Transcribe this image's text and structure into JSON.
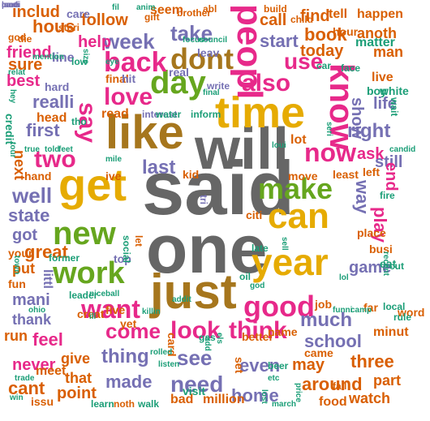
{
  "palette": {
    "gray": "#666666",
    "gold": "#E6AB02",
    "brown": "#A6761D",
    "pink": "#E7298A",
    "purple": "#7570B3",
    "green": "#66A61E",
    "orange": "#D95F02",
    "teal": "#1B9E77"
  },
  "words": [
    {
      "text": "said",
      "color": "gray"
    },
    {
      "text": "will",
      "color": "gray"
    },
    {
      "text": "one",
      "color": "gray"
    },
    {
      "text": "like",
      "color": "brown"
    },
    {
      "text": "time",
      "color": "gold"
    },
    {
      "text": "get",
      "color": "gold"
    },
    {
      "text": "just",
      "color": "brown"
    },
    {
      "text": "year",
      "color": "gold"
    },
    {
      "text": "can",
      "color": "gold"
    },
    {
      "text": "make",
      "color": "green"
    },
    {
      "text": "new",
      "color": "green"
    },
    {
      "text": "work",
      "color": "green"
    },
    {
      "text": "day",
      "color": "green"
    },
    {
      "text": "know",
      "color": "pink"
    },
    {
      "text": "peopl",
      "color": "pink"
    },
    {
      "text": "want",
      "color": "pink"
    },
    {
      "text": "good",
      "color": "pink"
    },
    {
      "text": "dont",
      "color": "brown"
    },
    {
      "text": "back",
      "color": "pink"
    },
    {
      "text": "now",
      "color": "pink"
    },
    {
      "text": "love",
      "color": "pink"
    },
    {
      "text": "say",
      "color": "pink"
    },
    {
      "text": "also",
      "color": "pink"
    },
    {
      "text": "two",
      "color": "pink"
    },
    {
      "text": "look",
      "color": "pink"
    },
    {
      "text": "think",
      "color": "pink"
    },
    {
      "text": "come",
      "color": "pink"
    },
    {
      "text": "use",
      "color": "pink"
    },
    {
      "text": "way",
      "color": "purple"
    },
    {
      "text": "first",
      "color": "purple"
    },
    {
      "text": "take",
      "color": "purple"
    },
    {
      "text": "last",
      "color": "purple"
    },
    {
      "text": "well",
      "color": "purple"
    },
    {
      "text": "right",
      "color": "purple"
    },
    {
      "text": "week",
      "color": "purple"
    },
    {
      "text": "see",
      "color": "purple"
    },
    {
      "text": "need",
      "color": "purple"
    },
    {
      "text": "thing",
      "color": "purple"
    },
    {
      "text": "much",
      "color": "purple"
    },
    {
      "text": "made",
      "color": "purple"
    },
    {
      "text": "even",
      "color": "purple"
    },
    {
      "text": "realli",
      "color": "purple"
    },
    {
      "text": "state",
      "color": "purple"
    },
    {
      "text": "game",
      "color": "purple"
    },
    {
      "text": "school",
      "color": "purple"
    },
    {
      "text": "may",
      "color": "orange"
    },
    {
      "text": "great",
      "color": "orange"
    },
    {
      "text": "got",
      "color": "purple"
    },
    {
      "text": "home",
      "color": "purple"
    },
    {
      "text": "start",
      "color": "purple"
    },
    {
      "text": "show",
      "color": "purple"
    },
    {
      "text": "still",
      "color": "purple"
    },
    {
      "text": "life",
      "color": "purple"
    },
    {
      "text": "play",
      "color": "pink"
    },
    {
      "text": "end",
      "color": "pink"
    },
    {
      "text": "ask",
      "color": "pink"
    },
    {
      "text": "call",
      "color": "orange"
    },
    {
      "text": "book",
      "color": "orange"
    },
    {
      "text": "today",
      "color": "orange"
    },
    {
      "text": "find",
      "color": "orange"
    },
    {
      "text": "follow",
      "color": "orange"
    },
    {
      "text": "help",
      "color": "pink"
    },
    {
      "text": "hous",
      "color": "orange"
    },
    {
      "text": "friend",
      "color": "pink"
    },
    {
      "text": "best",
      "color": "pink"
    },
    {
      "text": "sure",
      "color": "orange"
    },
    {
      "text": "includ",
      "color": "orange"
    },
    {
      "text": "seem",
      "color": "orange"
    },
    {
      "text": "tell",
      "color": "orange"
    },
    {
      "text": "happen",
      "color": "orange"
    },
    {
      "text": "anoth",
      "color": "orange"
    },
    {
      "text": "man",
      "color": "orange"
    },
    {
      "text": "live",
      "color": "orange"
    },
    {
      "text": "lot",
      "color": "orange"
    },
    {
      "text": "move",
      "color": "orange"
    },
    {
      "text": "least",
      "color": "orange"
    },
    {
      "text": "left",
      "color": "orange"
    },
    {
      "text": "mani",
      "color": "purple"
    },
    {
      "text": "thank",
      "color": "purple"
    },
    {
      "text": "feel",
      "color": "pink"
    },
    {
      "text": "never",
      "color": "pink"
    },
    {
      "text": "give",
      "color": "orange"
    },
    {
      "text": "that",
      "color": "orange"
    },
    {
      "text": "point",
      "color": "orange"
    },
    {
      "text": "cant",
      "color": "orange"
    },
    {
      "text": "around",
      "color": "orange"
    },
    {
      "text": "three",
      "color": "orange"
    },
    {
      "text": "part",
      "color": "orange"
    },
    {
      "text": "watch",
      "color": "orange"
    },
    {
      "text": "food",
      "color": "orange"
    },
    {
      "text": "million",
      "color": "orange"
    },
    {
      "text": "bad",
      "color": "orange"
    },
    {
      "text": "run",
      "color": "orange"
    },
    {
      "text": "kid",
      "color": "orange"
    },
    {
      "text": "ive",
      "color": "orange"
    },
    {
      "text": "tri",
      "color": "purple"
    },
    {
      "text": "citi",
      "color": "orange"
    },
    {
      "text": "final",
      "color": "orange"
    },
    {
      "text": "hand",
      "color": "orange"
    },
    {
      "text": "place",
      "color": "orange"
    },
    {
      "text": "put",
      "color": "orange"
    },
    {
      "text": "littl",
      "color": "purple"
    },
    {
      "text": "next",
      "color": "orange"
    },
    {
      "text": "head",
      "color": "orange"
    },
    {
      "text": "read",
      "color": "orange"
    },
    {
      "text": "job",
      "color": "orange"
    },
    {
      "text": "fun",
      "color": "orange"
    },
    {
      "text": "meet",
      "color": "orange"
    },
    {
      "text": "came",
      "color": "orange"
    },
    {
      "text": "name",
      "color": "orange"
    },
    {
      "text": "word",
      "color": "orange"
    },
    {
      "text": "busi",
      "color": "orange"
    },
    {
      "text": "your",
      "color": "orange"
    },
    {
      "text": "line",
      "color": "purple"
    },
    {
      "text": "hard",
      "color": "purple"
    },
    {
      "text": "care",
      "color": "purple"
    },
    {
      "text": "write",
      "color": "purple"
    },
    {
      "text": "top",
      "color": "purple"
    },
    {
      "text": "leav",
      "color": "purple"
    },
    {
      "text": "hit",
      "color": "purple"
    },
    {
      "text": "real",
      "color": "purple"
    },
    {
      "text": "interest",
      "color": "purple"
    },
    {
      "text": "water",
      "color": "teal"
    },
    {
      "text": "inform",
      "color": "teal"
    },
    {
      "text": "social",
      "color": "teal"
    },
    {
      "text": "let",
      "color": "orange"
    },
    {
      "text": "yet",
      "color": "orange"
    },
    {
      "text": "five",
      "color": "orange"
    },
    {
      "text": "creat",
      "color": "orange"
    },
    {
      "text": "card",
      "color": "orange"
    },
    {
      "text": "better",
      "color": "orange"
    },
    {
      "text": "set",
      "color": "orange"
    },
    {
      "text": "minut",
      "color": "orange"
    },
    {
      "text": "issu",
      "color": "orange"
    },
    {
      "text": "noth",
      "color": "orange"
    },
    {
      "text": "walk",
      "color": "teal"
    },
    {
      "text": "learn",
      "color": "teal"
    },
    {
      "text": "visit",
      "color": "teal"
    },
    {
      "text": "fall",
      "color": "orange"
    },
    {
      "text": "far",
      "color": "orange"
    },
    {
      "text": "local",
      "color": "teal"
    },
    {
      "text": "rule",
      "color": "teal"
    },
    {
      "text": "cut",
      "color": "teal"
    },
    {
      "text": "eat",
      "color": "teal"
    },
    {
      "text": "fire",
      "color": "teal"
    },
    {
      "text": "boy",
      "color": "teal"
    },
    {
      "text": "white",
      "color": "teal"
    },
    {
      "text": "wait",
      "color": "teal"
    },
    {
      "text": "face",
      "color": "teal"
    },
    {
      "text": "car",
      "color": "teal"
    },
    {
      "text": "matter",
      "color": "teal"
    },
    {
      "text": "hour",
      "color": "orange"
    },
    {
      "text": "build",
      "color": "orange"
    },
    {
      "text": "child",
      "color": "orange"
    },
    {
      "text": "abl",
      "color": "orange"
    },
    {
      "text": "stori",
      "color": "orange"
    },
    {
      "text": "god",
      "color": "orange"
    },
    {
      "text": "die",
      "color": "orange"
    },
    {
      "text": "brother",
      "color": "orange"
    },
    {
      "text": "gift",
      "color": "orange"
    },
    {
      "text": "focus",
      "color": "teal"
    },
    {
      "text": "council",
      "color": "teal"
    },
    {
      "text": "anim",
      "color": "teal"
    },
    {
      "text": "fil",
      "color": "teal"
    },
    {
      "text": "size",
      "color": "teal"
    },
    {
      "text": "mention",
      "color": "teal"
    },
    {
      "text": "low",
      "color": "teal"
    },
    {
      "text": "relat",
      "color": "teal"
    },
    {
      "text": "hey",
      "color": "teal"
    },
    {
      "text": "credit",
      "color": "teal"
    },
    {
      "text": "true",
      "color": "teal"
    },
    {
      "text": "told",
      "color": "teal"
    },
    {
      "text": "feet",
      "color": "teal"
    },
    {
      "text": "tour",
      "color": "teal"
    },
    {
      "text": "loui",
      "color": "teal"
    },
    {
      "text": "candid",
      "color": "teal"
    },
    {
      "text": "gas",
      "color": "teal"
    },
    {
      "text": "leader",
      "color": "teal"
    },
    {
      "text": "nice",
      "color": "teal"
    },
    {
      "text": "ball",
      "color": "teal"
    },
    {
      "text": "former",
      "color": "teal"
    },
    {
      "text": "town",
      "color": "teal"
    },
    {
      "text": "ohio",
      "color": "teal"
    },
    {
      "text": "funni",
      "color": "teal"
    },
    {
      "text": "camp",
      "color": "teal"
    },
    {
      "text": "trade",
      "color": "teal"
    },
    {
      "text": "etc",
      "color": "teal"
    },
    {
      "text": "price",
      "color": "teal"
    },
    {
      "text": "win",
      "color": "teal"
    },
    {
      "text": "beer",
      "color": "teal"
    },
    {
      "text": "listen",
      "color": "teal"
    },
    {
      "text": "eye",
      "color": "teal"
    },
    {
      "text": "add",
      "color": "teal"
    },
    {
      "text": "late",
      "color": "teal"
    },
    {
      "text": "sell",
      "color": "teal"
    },
    {
      "text": "god",
      "color": "teal"
    },
    {
      "text": "oil",
      "color": "teal"
    },
    {
      "text": "ill",
      "color": "teal"
    },
    {
      "text": "els",
      "color": "teal"
    },
    {
      "text": "lol",
      "color": "teal"
    },
    {
      "text": "recent",
      "color": "teal"
    },
    {
      "text": "seri",
      "color": "teal"
    },
    {
      "text": "rolled",
      "color": "teal"
    },
    {
      "text": "march",
      "color": "teal"
    },
    {
      "text": "lost",
      "color": "teal"
    },
    {
      "text": "mile",
      "color": "teal"
    },
    {
      "text": "tho",
      "color": "teal"
    },
    {
      "text": "killin",
      "color": "teal"
    },
    {
      "text": "addit",
      "color": "teal"
    },
    {
      "text": "final",
      "color": "teal"
    },
    {
      "text": "movi",
      "color": "purple"
    },
    {
      "text": "parti",
      "color": "purple"
    },
    {
      "text": "caus",
      "color": "purple"
    },
    {
      "text": "lead",
      "color": "purple"
    }
  ]
}
